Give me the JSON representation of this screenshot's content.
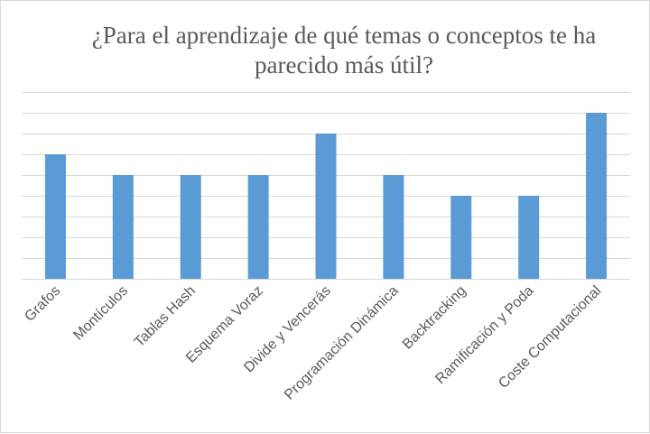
{
  "chart_data": {
    "type": "bar",
    "title": "¿Para el aprendizaje de qué temas o conceptos te ha parecido más útil?",
    "categories": [
      "Grafos",
      "Montículos",
      "Tablas Hash",
      "Esquema Voraz",
      "Divide y Vencerás",
      "Programación Dinámica",
      "Backtracking",
      "Ramificación y Poda",
      "Coste Computacional"
    ],
    "values": [
      6,
      5,
      5,
      5,
      7,
      5,
      4,
      4,
      8
    ],
    "ylim": [
      0,
      9
    ],
    "grid": true,
    "legend": "none",
    "colors": {
      "bar": "#5b9bd5",
      "grid": "#d9d9d9",
      "text": "#595959"
    }
  }
}
